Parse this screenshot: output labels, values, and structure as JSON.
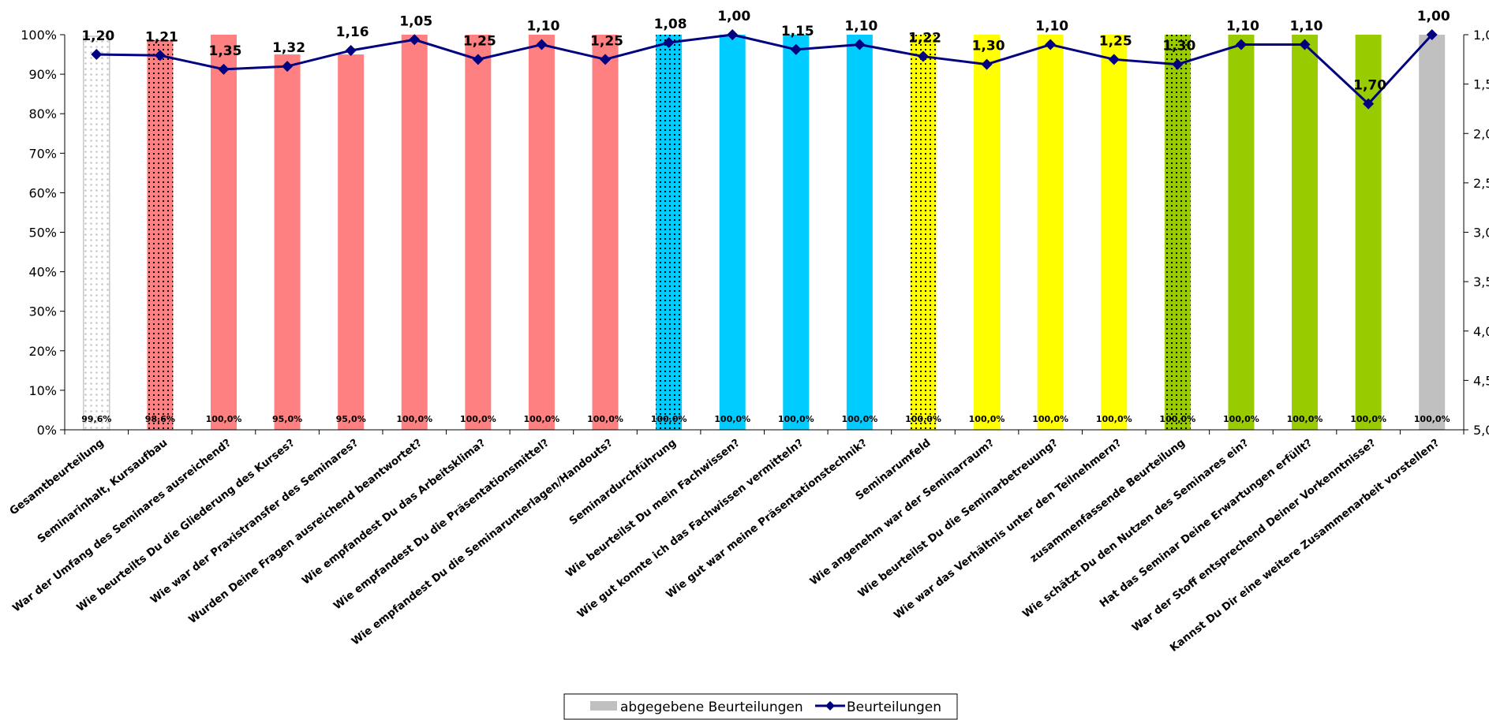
{
  "chart_data": {
    "type": "bar",
    "title": "",
    "categories": [
      "Gesamtbeurteilung",
      "Seminarinhalt, Kursaufbau",
      "War der Umfang des Seminares ausreichend?",
      "Wie beurteilts Du die Gliederung des Kurses?",
      "Wie war der Praxistransfer des Seminares?",
      "Wurden Deine Fragen ausreichend beantwortet?",
      "Wie empfandest Du das Arbeitsklima?",
      "Wie empfandest Du die Präsentationsmittel?",
      "Wie empfandest Du die Seminarunterlagen/Handouts?",
      "Seminardurchführung",
      "Wie beurteilst Du mein Fachwissen?",
      "Wie gut konnte ich das Fachwissen vermitteln?",
      "Wie gut war meine Präsentationstechnik?",
      "Seminarumfeld",
      "Wie angenehm war der Seminarraum?",
      "Wie beurteilst Du die Seminarbetreuung?",
      "Wie war das Verhältnis unter den Teilnehmern?",
      "zusammenfassende Beurteilung",
      "Wie schätzt Du den Nutzen des Seminares ein?",
      "Hat das Seminar Deine Erwartungen erfüllt?",
      "War der Stoff entsprechend Deiner Vorkenntnisse?",
      "Kannst Du Dir eine weitere Zusammenarbeit vorstellen?"
    ],
    "series": [
      {
        "name": "abgegebene Beurteilungen",
        "type": "bar",
        "axis": "left",
        "values": [
          99.6,
          98.6,
          100.0,
          95.0,
          95.0,
          100.0,
          100.0,
          100.0,
          100.0,
          100.0,
          100.0,
          100.0,
          100.0,
          100.0,
          100.0,
          100.0,
          100.0,
          100.0,
          100.0,
          100.0,
          100.0,
          100.0
        ],
        "labels": [
          "99,6%",
          "98,6%",
          "100,0%",
          "95,0%",
          "95,0%",
          "100,0%",
          "100,0%",
          "100,0%",
          "100,0%",
          "100,0%",
          "100,0%",
          "100,0%",
          "100,0%",
          "100,0%",
          "100,0%",
          "100,0%",
          "100,0%",
          "100,0%",
          "100,0%",
          "100,0%",
          "100,0%",
          "100,0%"
        ],
        "colors": [
          "#ffffff",
          "#ff8080",
          "#ff8080",
          "#ff8080",
          "#ff8080",
          "#ff8080",
          "#ff8080",
          "#ff8080",
          "#ff8080",
          "#00ccff",
          "#00ccff",
          "#00ccff",
          "#00ccff",
          "#ffff00",
          "#ffff00",
          "#ffff00",
          "#ffff00",
          "#99cc00",
          "#99cc00",
          "#99cc00",
          "#99cc00",
          "#c0c0c0"
        ],
        "dotted": [
          true,
          true,
          false,
          false,
          false,
          false,
          false,
          false,
          false,
          true,
          false,
          false,
          false,
          true,
          false,
          false,
          false,
          true,
          false,
          false,
          false,
          false
        ]
      },
      {
        "name": "Beurteilungen",
        "type": "line",
        "axis": "right",
        "color": "#000080",
        "values": [
          1.2,
          1.21,
          1.35,
          1.32,
          1.16,
          1.05,
          1.25,
          1.1,
          1.25,
          1.08,
          1.0,
          1.15,
          1.1,
          1.22,
          1.3,
          1.1,
          1.25,
          1.3,
          1.1,
          1.1,
          1.7,
          1.0
        ],
        "labels": [
          "1,20",
          "1,21",
          "1,35",
          "1,32",
          "1,16",
          "1,05",
          "1,25",
          "1,10",
          "1,25",
          "1,08",
          "1,00",
          "1,15",
          "1,10",
          "1,22",
          "1,30",
          "1,10",
          "1,25",
          "1,30",
          "1,10",
          "1,10",
          "1,70",
          "1,00"
        ]
      }
    ],
    "y_left": {
      "ylim": [
        0,
        100
      ],
      "ticks": [
        0,
        10,
        20,
        30,
        40,
        50,
        60,
        70,
        80,
        90,
        100
      ],
      "tick_labels": [
        "0%",
        "10%",
        "20%",
        "30%",
        "40%",
        "50%",
        "60%",
        "70%",
        "80%",
        "90%",
        "100%"
      ]
    },
    "y_right": {
      "ylim": [
        1.0,
        5.0
      ],
      "inverted": true,
      "ticks": [
        1.0,
        1.5,
        2.0,
        2.5,
        3.0,
        3.5,
        4.0,
        4.5,
        5.0
      ],
      "tick_labels": [
        "1,0",
        "1,5",
        "2,0",
        "2,5",
        "3,0",
        "3,5",
        "4,0",
        "4,5",
        "5,0"
      ]
    },
    "grid": false,
    "legend": {
      "position": "bottom-center",
      "entries": [
        "abgegebene Beurteilungen",
        "Beurteilungen"
      ]
    }
  }
}
